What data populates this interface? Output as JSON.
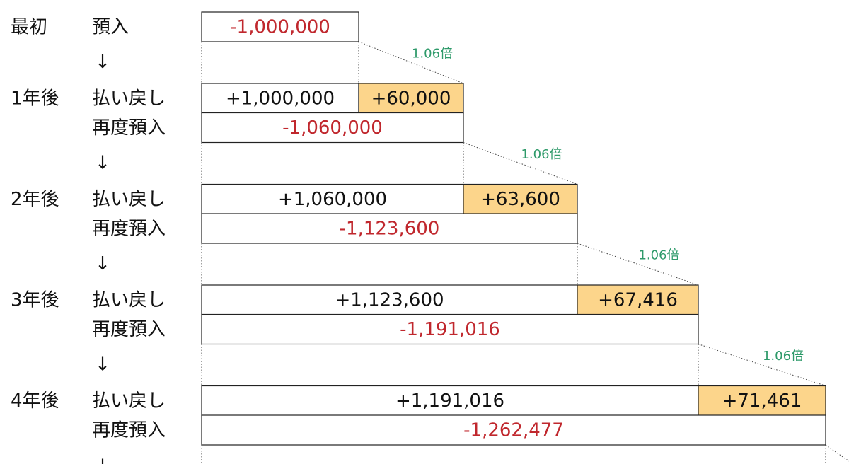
{
  "initial": {
    "label": "最初",
    "action": "預入",
    "amount": "-1,000,000"
  },
  "arrow": "↓",
  "ratio": "1.06倍",
  "years": [
    {
      "label": "1年後",
      "refund_action": "払い戻し",
      "refund": "+1,000,000",
      "interest": "+60,000",
      "redeposit_action": "再度預入",
      "redeposit": "-1,060,000"
    },
    {
      "label": "2年後",
      "refund_action": "払い戻し",
      "refund": "+1,060,000",
      "interest": "+63,600",
      "redeposit_action": "再度預入",
      "redeposit": "-1,123,600"
    },
    {
      "label": "3年後",
      "refund_action": "払い戻し",
      "refund": "+1,123,600",
      "interest": "+67,416",
      "redeposit_action": "再度預入",
      "redeposit": "-1,191,016"
    },
    {
      "label": "4年後",
      "refund_action": "払い戻し",
      "refund": "+1,191,016",
      "interest": "+71,461",
      "redeposit_action": "再度預入",
      "redeposit": "-1,262,477"
    }
  ]
}
